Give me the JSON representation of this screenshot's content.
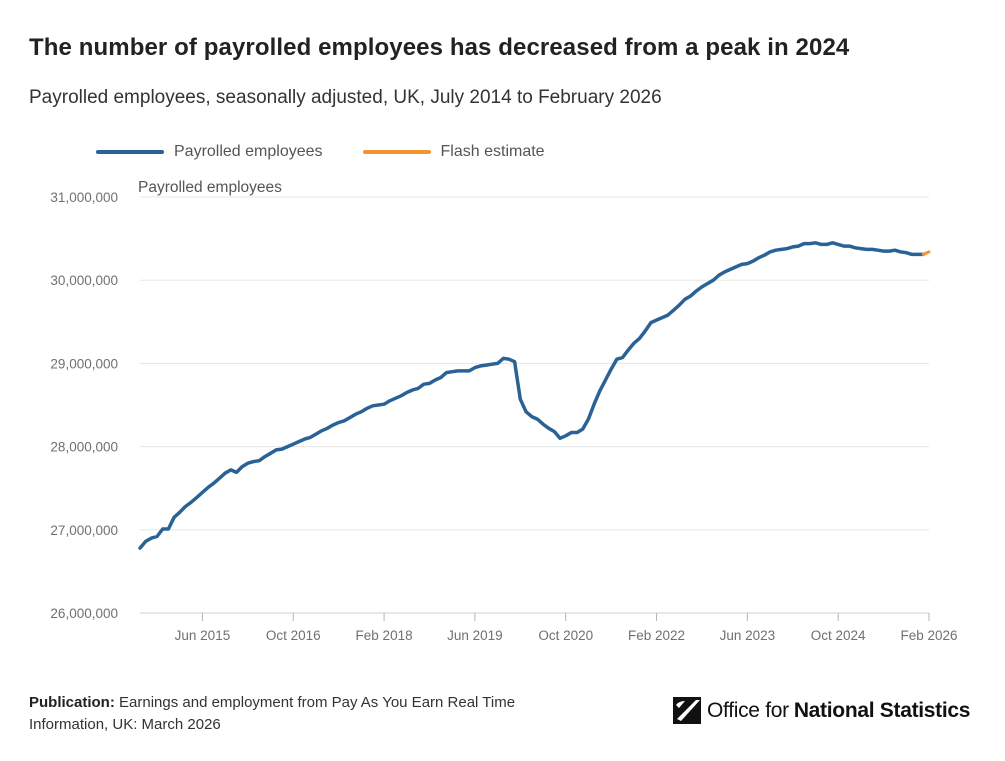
{
  "header": {
    "title": "The number of payrolled employees has decreased from a peak in 2024",
    "subtitle": "Payrolled employees, seasonally adjusted, UK, July 2014 to February 2026"
  },
  "legend": {
    "items": [
      {
        "label": "Payrolled employees",
        "color": "#2b6296"
      },
      {
        "label": "Flash estimate",
        "color": "#f39431"
      }
    ]
  },
  "footer": {
    "publication_label": "Publication:",
    "publication_text": "Earnings and employment from Pay As You Earn Real Time Information, UK: March 2026"
  },
  "logo": {
    "text_regular": "Office for",
    "text_bold": "National Statistics"
  },
  "chart_data": {
    "type": "line",
    "title": "The number of payrolled employees has decreased from a peak in 2024",
    "subtitle": "Payrolled employees, seasonally adjusted, UK, July 2014 to February 2026",
    "ylabel": "Payrolled employees",
    "xlabel": "",
    "ylim": [
      26000000,
      31000000
    ],
    "yticks": [
      26000000,
      27000000,
      28000000,
      29000000,
      30000000,
      31000000
    ],
    "ytick_labels": [
      "26,000,000",
      "27,000,000",
      "28,000,000",
      "29,000,000",
      "30,000,000",
      "31,000,000"
    ],
    "x_start": "Jul 2014",
    "x_end": "Feb 2026",
    "xticks": [
      {
        "label": "Jun 2015",
        "index": 11
      },
      {
        "label": "Oct 2016",
        "index": 27
      },
      {
        "label": "Feb 2018",
        "index": 43
      },
      {
        "label": "Jun 2019",
        "index": 59
      },
      {
        "label": "Oct 2020",
        "index": 75
      },
      {
        "label": "Feb 2022",
        "index": 91
      },
      {
        "label": "Jun 2023",
        "index": 107
      },
      {
        "label": "Oct 2024",
        "index": 123
      },
      {
        "label": "Feb 2026",
        "index": 139
      }
    ],
    "grid": true,
    "legend_position": "top-left",
    "series": [
      {
        "name": "Payrolled employees",
        "color": "#2b6296",
        "start_index": 0,
        "values": [
          26780000,
          26860000,
          26900000,
          26920000,
          27010000,
          27010000,
          27150000,
          27210000,
          27280000,
          27330000,
          27390000,
          27450000,
          27510000,
          27560000,
          27620000,
          27680000,
          27720000,
          27690000,
          27760000,
          27800000,
          27820000,
          27830000,
          27880000,
          27920000,
          27960000,
          27970000,
          28000000,
          28030000,
          28060000,
          28090000,
          28110000,
          28150000,
          28190000,
          28220000,
          28260000,
          28290000,
          28310000,
          28350000,
          28390000,
          28420000,
          28460000,
          28490000,
          28500000,
          28510000,
          28550000,
          28580000,
          28610000,
          28650000,
          28680000,
          28700000,
          28750000,
          28760000,
          28800000,
          28830000,
          28890000,
          28900000,
          28910000,
          28910000,
          28910000,
          28950000,
          28970000,
          28980000,
          28990000,
          29000000,
          29060000,
          29050000,
          29020000,
          28570000,
          28420000,
          28360000,
          28330000,
          28270000,
          28220000,
          28180000,
          28100000,
          28130000,
          28170000,
          28170000,
          28210000,
          28330000,
          28510000,
          28670000,
          28800000,
          28930000,
          29050000,
          29070000,
          29160000,
          29240000,
          29300000,
          29390000,
          29490000,
          29520000,
          29550000,
          29580000,
          29640000,
          29700000,
          29770000,
          29810000,
          29870000,
          29920000,
          29960000,
          30000000,
          30060000,
          30100000,
          30130000,
          30160000,
          30190000,
          30200000,
          30230000,
          30270000,
          30300000,
          30340000,
          30360000,
          30370000,
          30380000,
          30400000,
          30410000,
          30440000,
          30440000,
          30450000,
          30430000,
          30430000,
          30450000,
          30430000,
          30410000,
          30410000,
          30390000,
          30380000,
          30370000,
          30370000,
          30360000,
          30350000,
          30350000,
          30360000,
          30340000,
          30330000,
          30310000,
          30310000,
          30310000
        ]
      },
      {
        "name": "Flash estimate",
        "color": "#f39431",
        "start_index": 138,
        "values": [
          30310000,
          30340000
        ]
      }
    ]
  }
}
